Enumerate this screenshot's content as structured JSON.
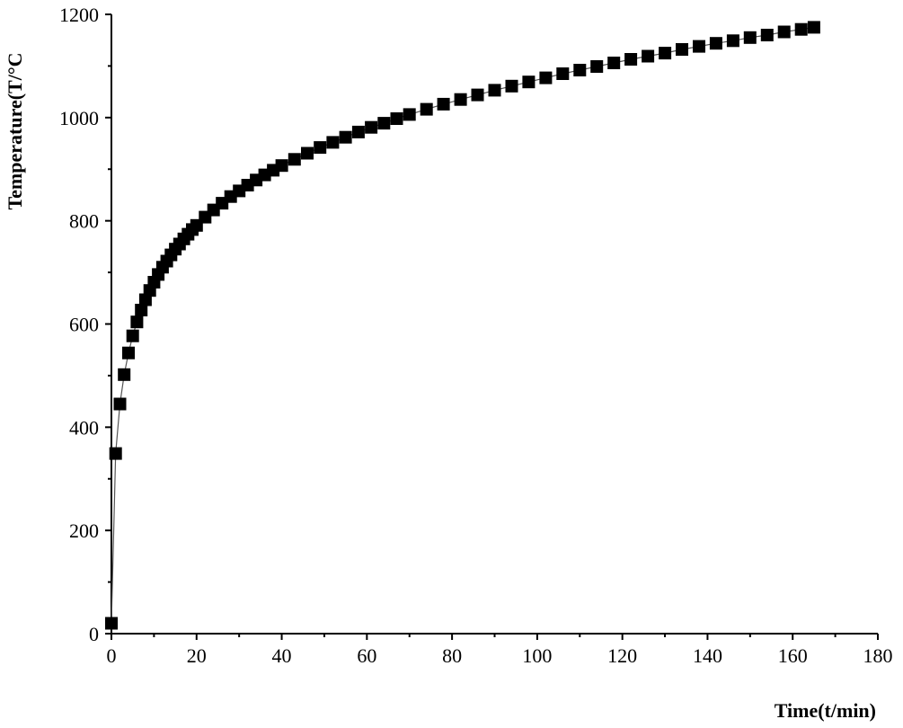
{
  "chart_data": {
    "type": "scatter",
    "title": "",
    "xlabel": "Time(t/min)",
    "ylabel": "Temperature(T/°C",
    "xlim": [
      0,
      180
    ],
    "ylim": [
      0,
      1200
    ],
    "xticks": [
      0,
      20,
      40,
      60,
      80,
      100,
      120,
      140,
      160,
      180
    ],
    "yticks": [
      0,
      200,
      400,
      600,
      800,
      1000,
      1200
    ],
    "xtick_labels": [
      "0",
      "20",
      "40",
      "60",
      "80",
      "100",
      "120",
      "140",
      "160",
      "180"
    ],
    "ytick_labels": [
      "0",
      "200",
      "400",
      "600",
      "800",
      "1000",
      "1200"
    ],
    "grid": false,
    "legend": "none",
    "marker": "square",
    "color": "#000000",
    "series": [
      {
        "x": [
          0,
          1,
          2,
          3,
          4,
          5,
          6,
          7,
          8,
          9,
          10,
          11,
          12,
          13,
          14,
          15,
          16,
          17,
          18,
          19,
          20,
          22,
          24,
          26,
          28,
          30,
          32,
          34,
          36,
          38,
          40,
          43,
          46,
          49,
          52,
          55,
          58,
          61,
          64,
          67,
          70,
          74,
          78,
          82,
          86,
          90,
          94,
          98,
          102,
          106,
          110,
          114,
          118,
          122,
          126,
          130,
          134,
          138,
          142,
          146,
          150,
          154,
          158,
          162,
          165
        ],
        "y": [
          20,
          349,
          445,
          502,
          544,
          577,
          604,
          627,
          647,
          665,
          681,
          696,
          710,
          722,
          734,
          745,
          755,
          765,
          774,
          783,
          791,
          807,
          821,
          834,
          847,
          858,
          869,
          879,
          889,
          898,
          907,
          919,
          931,
          942,
          952,
          962,
          972,
          981,
          989,
          998,
          1006,
          1016,
          1026,
          1035,
          1044,
          1053,
          1061,
          1069,
          1077,
          1085,
          1092,
          1099,
          1106,
          1113,
          1119,
          1125,
          1132,
          1138,
          1144,
          1149,
          1155,
          1160,
          1166,
          1171,
          1175
        ]
      }
    ]
  }
}
